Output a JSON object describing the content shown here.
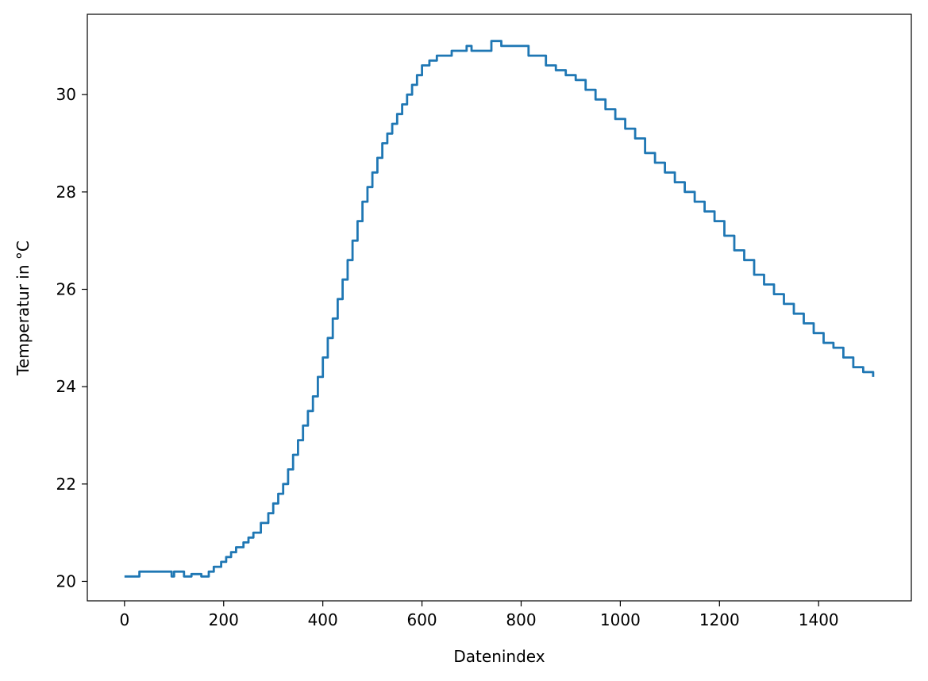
{
  "chart_data": {
    "type": "line",
    "title": "",
    "xlabel": "Datenindex",
    "ylabel": "Temperatur in °C",
    "xlim": [
      -75,
      1587
    ],
    "ylim": [
      19.6,
      31.65
    ],
    "x_ticks": [
      0,
      200,
      400,
      600,
      800,
      1000,
      1200,
      1400
    ],
    "y_ticks": [
      20,
      22,
      24,
      26,
      28,
      30
    ],
    "grid": false,
    "legend": "none",
    "series_color": "#1f77b4",
    "series": [
      {
        "x": [
          0,
          25,
          30,
          90,
          95,
          100,
          115,
          120,
          130,
          135,
          155,
          170,
          180,
          195,
          205,
          215,
          225,
          240,
          250,
          260,
          275,
          290,
          300,
          310,
          320,
          330,
          340,
          350,
          360,
          370,
          380,
          390,
          400,
          410,
          420,
          430,
          440,
          450,
          460,
          470,
          480,
          490,
          500,
          510,
          520,
          530,
          540,
          550,
          560,
          570,
          580,
          590,
          600,
          615,
          630,
          660,
          675,
          690,
          700,
          740,
          760,
          800,
          815,
          850,
          870,
          890,
          910,
          930,
          950,
          970,
          990,
          1010,
          1030,
          1050,
          1070,
          1090,
          1110,
          1130,
          1150,
          1170,
          1190,
          1210,
          1230,
          1250,
          1270,
          1290,
          1310,
          1330,
          1350,
          1370,
          1390,
          1410,
          1430,
          1450,
          1470,
          1490,
          1510
        ],
        "y": [
          20.1,
          20.1,
          20.2,
          20.2,
          20.1,
          20.2,
          20.2,
          20.1,
          20.1,
          20.15,
          20.1,
          20.2,
          20.3,
          20.4,
          20.5,
          20.6,
          20.7,
          20.8,
          20.9,
          21.0,
          21.2,
          21.4,
          21.6,
          21.8,
          22.0,
          22.3,
          22.6,
          22.9,
          23.2,
          23.5,
          23.8,
          24.2,
          24.6,
          25.0,
          25.4,
          25.8,
          26.2,
          26.6,
          27.0,
          27.4,
          27.8,
          28.1,
          28.4,
          28.7,
          29.0,
          29.2,
          29.4,
          29.6,
          29.8,
          30.0,
          30.2,
          30.4,
          30.6,
          30.7,
          30.8,
          30.9,
          30.9,
          31.0,
          30.9,
          31.1,
          31.0,
          31.0,
          30.8,
          30.6,
          30.5,
          30.4,
          30.3,
          30.1,
          29.9,
          29.7,
          29.5,
          29.3,
          29.1,
          28.8,
          28.6,
          28.4,
          28.2,
          28.0,
          27.8,
          27.6,
          27.4,
          27.1,
          26.8,
          26.6,
          26.3,
          26.1,
          25.9,
          25.7,
          25.5,
          25.3,
          25.1,
          24.9,
          24.8,
          24.6,
          24.4,
          24.3,
          24.2
        ]
      }
    ]
  }
}
